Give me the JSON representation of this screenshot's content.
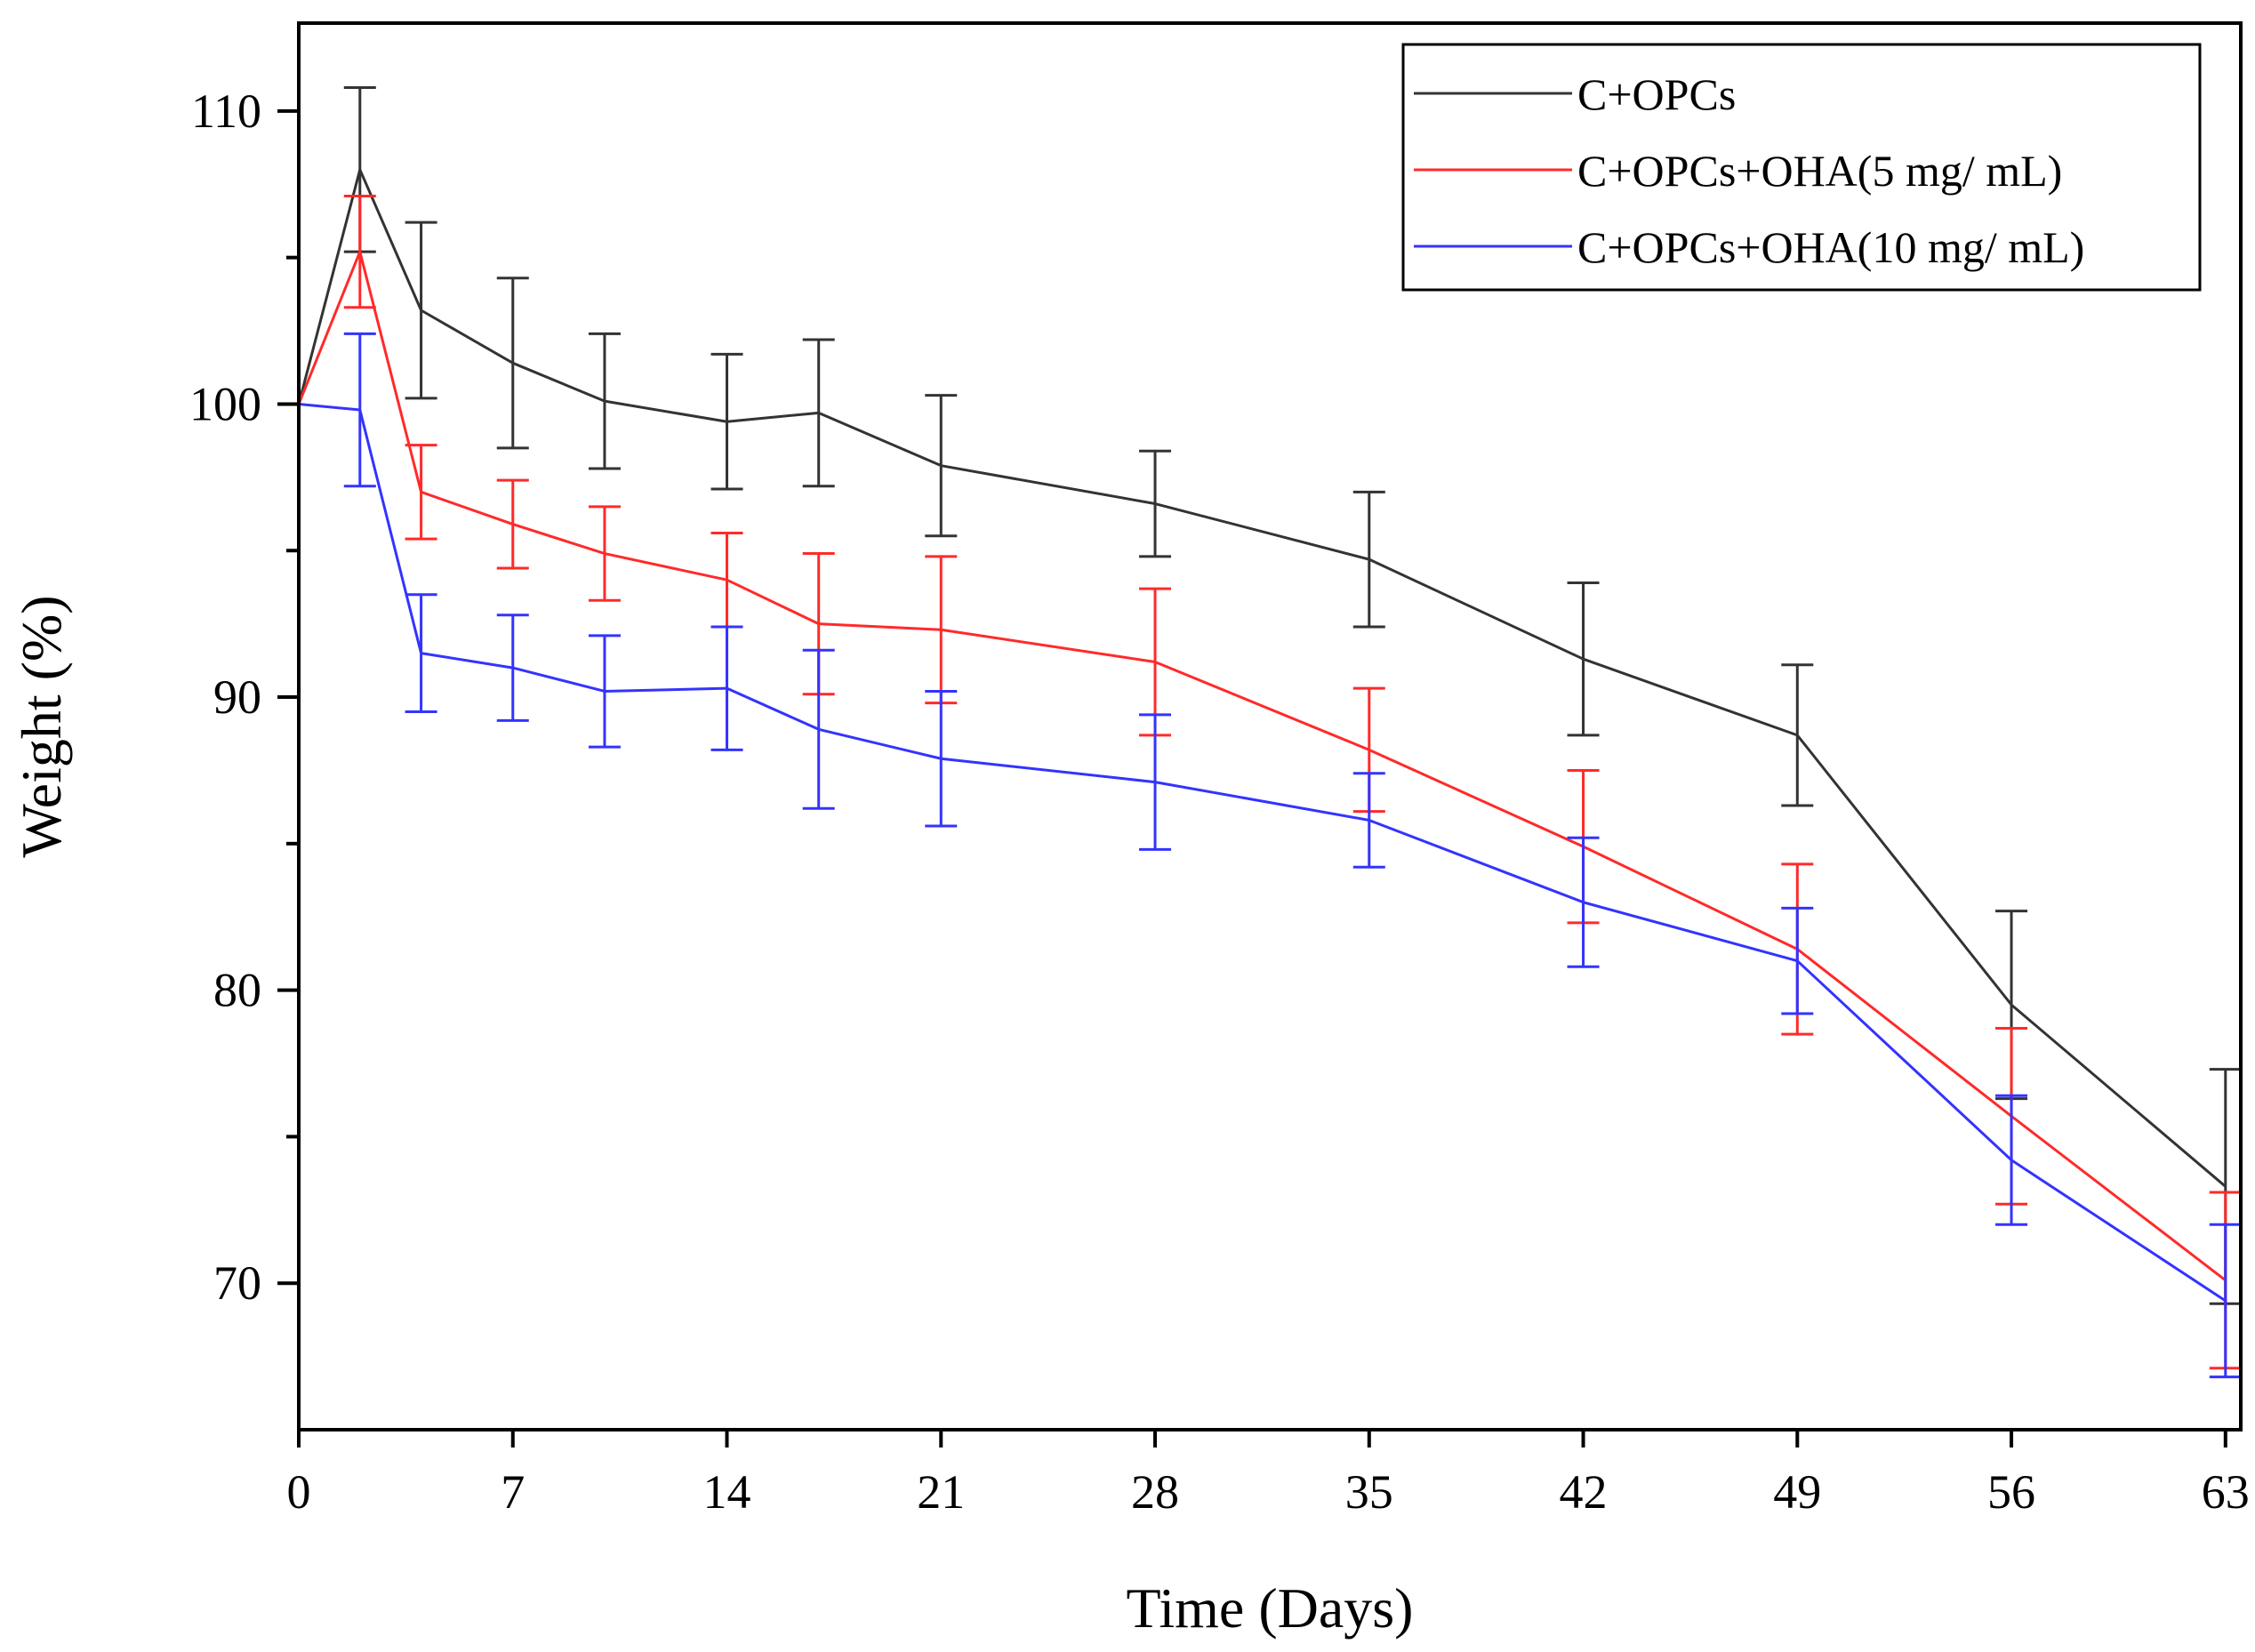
{
  "chart_data": {
    "type": "line",
    "title": "",
    "xlabel": "Time (Days)",
    "ylabel": "Weight  (%)",
    "xlim": [
      0,
      63.5
    ],
    "ylim": [
      65,
      113
    ],
    "x_ticks": [
      0,
      7,
      14,
      21,
      28,
      35,
      42,
      49,
      56,
      63
    ],
    "x_tick_labels": [
      "0",
      "7",
      "14",
      "21",
      "28",
      "35",
      "42",
      "49",
      "56",
      "63"
    ],
    "y_ticks": [
      70,
      80,
      90,
      100,
      110
    ],
    "y_tick_labels": [
      "70",
      "80",
      "90",
      "100",
      "110"
    ],
    "y_minor_ticks": [
      75,
      85,
      95,
      105
    ],
    "grid": false,
    "legend_position": "top-right",
    "x": [
      0,
      2,
      4,
      7,
      10,
      14,
      17,
      21,
      28,
      35,
      42,
      49,
      56,
      63
    ],
    "series": [
      {
        "name": "C+OPCs",
        "color": "#333333",
        "values": [
          100,
          108,
          103.2,
          101.4,
          100.1,
          99.4,
          99.7,
          97.9,
          96.6,
          94.7,
          91.3,
          88.7,
          79.5,
          73.3
        ],
        "errors": [
          0,
          2.8,
          3.0,
          2.9,
          2.3,
          2.3,
          2.5,
          2.4,
          1.8,
          2.3,
          2.6,
          2.4,
          3.2,
          4.0
        ]
      },
      {
        "name": "C+OPCs+OHA(5 mg/ mL)",
        "color": "#ff2a2a",
        "values": [
          100,
          105.2,
          97.0,
          95.9,
          94.9,
          94.0,
          92.5,
          92.3,
          91.2,
          88.2,
          84.9,
          81.4,
          75.7,
          70.1
        ],
        "errors": [
          0,
          1.9,
          1.6,
          1.5,
          1.6,
          1.6,
          2.4,
          2.5,
          2.5,
          2.1,
          2.6,
          2.9,
          3.0,
          3.0
        ]
      },
      {
        "name": "C+OPCs+OHA(10 mg/ mL)",
        "color": "#3333ff",
        "values": [
          100,
          99.8,
          91.5,
          91.0,
          90.2,
          90.3,
          88.9,
          87.9,
          87.1,
          85.8,
          83.0,
          81.0,
          74.2,
          69.4
        ],
        "errors": [
          0,
          2.6,
          2.0,
          1.8,
          1.9,
          2.1,
          2.7,
          2.3,
          2.3,
          1.6,
          2.2,
          1.8,
          2.2,
          2.6
        ]
      }
    ]
  }
}
